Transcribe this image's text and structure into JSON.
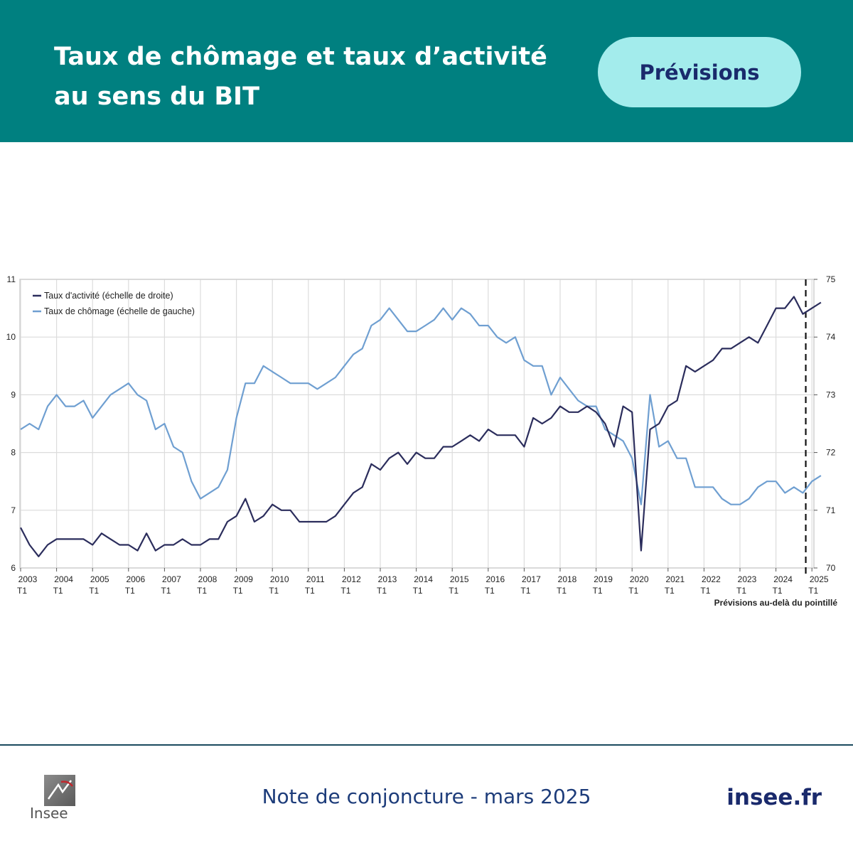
{
  "header": {
    "title_line1": "Taux de chômage et taux d’activité",
    "title_line2": "au sens du BIT",
    "badge": "Prévisions"
  },
  "footer": {
    "publication": "Note de conjoncture - mars 2025",
    "link": "insee.fr",
    "logo_text": "Insee"
  },
  "colors": {
    "header_bg": "#008080",
    "badge_bg": "#a3ecec",
    "activity_line": "#2b2d5c",
    "unemployment_line": "#6f9fd1"
  },
  "chart_data": {
    "type": "line",
    "legend_position": "top-left",
    "grid": true,
    "forecast_note": "Prévisions au-delà du pointillé",
    "forecast_start": "2024 T4",
    "x_start_year": 2003,
    "x_tick_years": [
      "2003",
      "2004",
      "2005",
      "2006",
      "2007",
      "2008",
      "2009",
      "2010",
      "2011",
      "2012",
      "2013",
      "2014",
      "2015",
      "2016",
      "2017",
      "2018",
      "2019",
      "2020",
      "2021",
      "2022",
      "2023",
      "2024",
      "2025"
    ],
    "x_tick_quarter_label": "T1",
    "y_left": {
      "min": 6,
      "max": 11,
      "ticks": [
        "6",
        "7",
        "8",
        "9",
        "10",
        "11"
      ]
    },
    "y_right": {
      "min": 70,
      "max": 75,
      "ticks": [
        "70",
        "71",
        "72",
        "73",
        "74",
        "75"
      ]
    },
    "series": [
      {
        "name": "Taux d'activité (échelle de droite)",
        "axis": "right",
        "values": [
          70.7,
          70.4,
          70.2,
          70.4,
          70.5,
          70.5,
          70.5,
          70.5,
          70.4,
          70.6,
          70.5,
          70.4,
          70.4,
          70.3,
          70.6,
          70.3,
          70.4,
          70.4,
          70.5,
          70.4,
          70.4,
          70.5,
          70.5,
          70.8,
          70.9,
          71.2,
          70.8,
          70.9,
          71.1,
          71.0,
          71.0,
          70.8,
          70.8,
          70.8,
          70.8,
          70.9,
          71.1,
          71.3,
          71.4,
          71.8,
          71.7,
          71.9,
          72.0,
          71.8,
          72.0,
          71.9,
          71.9,
          72.1,
          72.1,
          72.2,
          72.3,
          72.2,
          72.4,
          72.3,
          72.3,
          72.3,
          72.1,
          72.6,
          72.5,
          72.6,
          72.8,
          72.7,
          72.7,
          72.8,
          72.7,
          72.5,
          72.1,
          72.8,
          72.7,
          70.3,
          72.4,
          72.5,
          72.8,
          72.9,
          73.5,
          73.4,
          73.5,
          73.6,
          73.8,
          73.8,
          73.9,
          74.0,
          73.9,
          74.2,
          74.5,
          74.5,
          74.7,
          74.4,
          74.5,
          74.6
        ]
      },
      {
        "name": "Taux de chômage (échelle de gauche)",
        "axis": "left",
        "values": [
          8.4,
          8.5,
          8.4,
          8.8,
          9.0,
          8.8,
          8.8,
          8.9,
          8.6,
          8.8,
          9.0,
          9.1,
          9.2,
          9.0,
          8.9,
          8.4,
          8.5,
          8.1,
          8.0,
          7.5,
          7.2,
          7.3,
          7.4,
          7.7,
          8.6,
          9.2,
          9.2,
          9.5,
          9.4,
          9.3,
          9.2,
          9.2,
          9.2,
          9.1,
          9.2,
          9.3,
          9.5,
          9.7,
          9.8,
          10.2,
          10.3,
          10.5,
          10.3,
          10.1,
          10.1,
          10.2,
          10.3,
          10.5,
          10.3,
          10.5,
          10.4,
          10.2,
          10.2,
          10.0,
          9.9,
          10.0,
          9.6,
          9.5,
          9.5,
          9.0,
          9.3,
          9.1,
          8.9,
          8.8,
          8.8,
          8.4,
          8.3,
          8.2,
          7.9,
          7.1,
          9.0,
          8.1,
          8.2,
          7.9,
          7.9,
          7.4,
          7.4,
          7.4,
          7.2,
          7.1,
          7.1,
          7.2,
          7.4,
          7.5,
          7.5,
          7.3,
          7.4,
          7.3,
          7.5,
          7.6
        ]
      }
    ]
  }
}
